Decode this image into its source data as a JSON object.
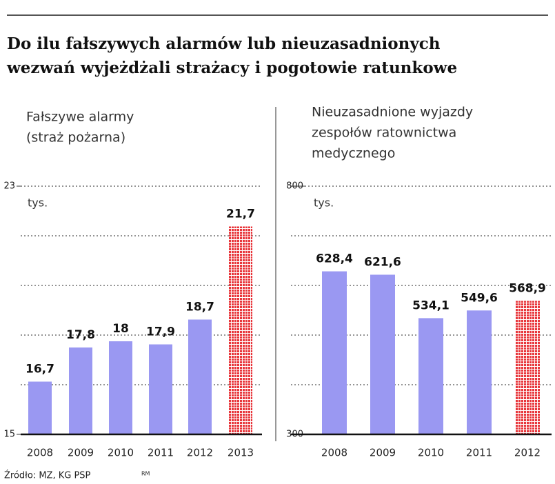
{
  "title": [
    "Do ilu fałszywych alarmów lub nieuzasadnionych",
    "wezwań wyjeżdżali strażacy i pogotowie ratunkowe"
  ],
  "source": "Źródło: MZ, KG PSP",
  "credit": "RM",
  "chart_data": [
    {
      "type": "bar",
      "title": [
        "Fałszywe alarmy",
        "(straż pożarna)"
      ],
      "unit": "tys.",
      "categories": [
        "2008",
        "2009",
        "2010",
        "2011",
        "2012",
        "2013"
      ],
      "values": [
        16.7,
        17.8,
        18,
        17.9,
        18.7,
        21.7
      ],
      "value_labels": [
        "16,7",
        "17,8",
        "18",
        "17,9",
        "18,7",
        "21,7"
      ],
      "colors": [
        "#9a98f2",
        "#9a98f2",
        "#9a98f2",
        "#9a98f2",
        "#9a98f2",
        "#e8353a"
      ],
      "hatched": [
        false,
        false,
        false,
        false,
        false,
        true
      ],
      "ylim": [
        15,
        23
      ],
      "yticks": [
        15,
        23
      ],
      "ygrid": [
        16.6,
        18.2,
        19.8,
        21.4,
        23
      ]
    },
    {
      "type": "bar",
      "title": [
        "Nieuzasadnione wyjazdy",
        "zespołów ratownictwa",
        "medycznego"
      ],
      "unit": "tys.",
      "categories": [
        "2008",
        "2009",
        "2010",
        "2011",
        "2012"
      ],
      "values": [
        628.4,
        621.6,
        534.1,
        549.6,
        568.9
      ],
      "value_labels": [
        "628,4",
        "621,6",
        "534,1",
        "549,6",
        "568,9"
      ],
      "colors": [
        "#9a98f2",
        "#9a98f2",
        "#9a98f2",
        "#9a98f2",
        "#e8353a"
      ],
      "hatched": [
        false,
        false,
        false,
        false,
        true
      ],
      "ylim": [
        300,
        800
      ],
      "yticks": [
        300,
        800
      ],
      "ygrid": [
        400,
        500,
        600,
        700,
        800
      ]
    }
  ]
}
